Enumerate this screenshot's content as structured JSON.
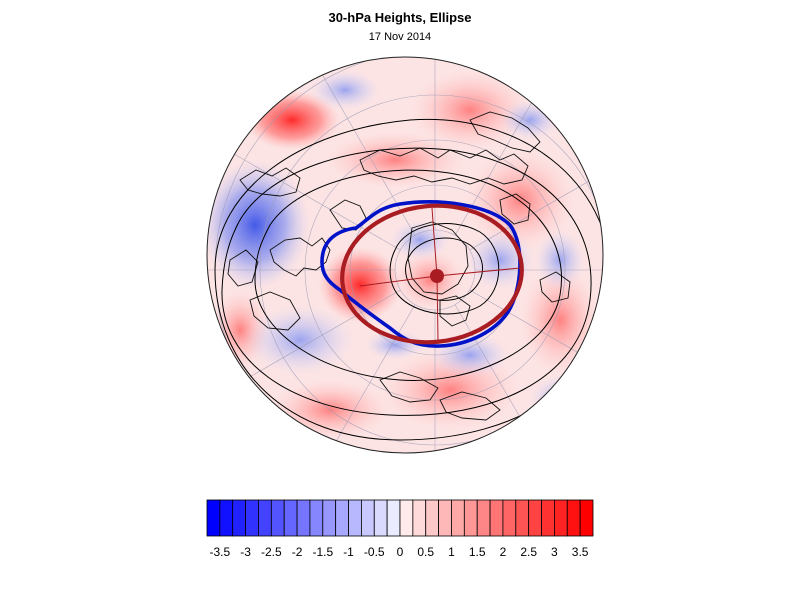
{
  "header": {
    "title": "30-hPa Heights, Ellipse",
    "subtitle": "17 Nov 2014"
  },
  "map": {
    "projection": "polar-stereographic-north",
    "field": "height-anomaly",
    "contours": "geopotential-height",
    "overlays": [
      {
        "name": "blue-contour",
        "color": "#0012c8"
      },
      {
        "name": "red-ellipse",
        "color": "#a81c22"
      }
    ]
  },
  "colorbar": {
    "min": -3.75,
    "max": 3.75,
    "step": 0.25,
    "negative_color": "#0000ff",
    "neutral_color": "#ffffff",
    "positive_color": "#ff0000",
    "tick_labels": [
      "-3.5",
      "-3",
      "-2.5",
      "-2",
      "-1.5",
      "-1",
      "-0.5",
      "0",
      "0.5",
      "1",
      "1.5",
      "2",
      "2.5",
      "3",
      "3.5"
    ]
  }
}
